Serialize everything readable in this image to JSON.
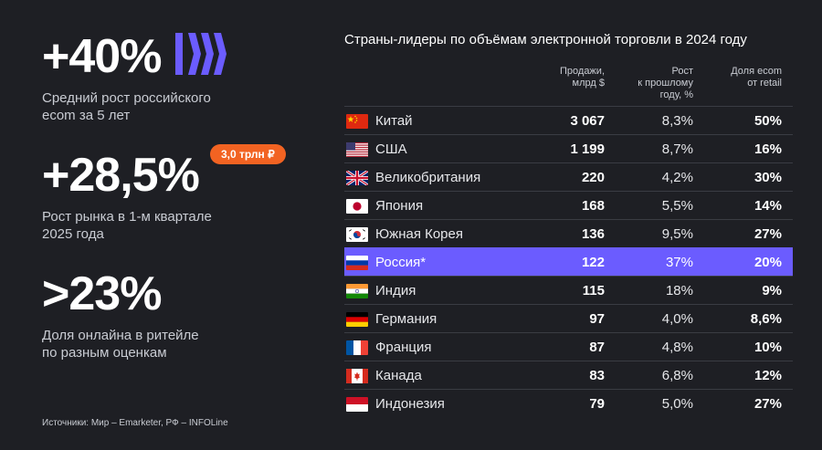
{
  "stats": [
    {
      "value": "+40%",
      "desc_line1": "Средний рост российского",
      "desc_line2": "ecom за 5 лет"
    },
    {
      "value": "+28,5%",
      "desc_line1": "Рост рынка в 1-м квартале",
      "desc_line2": "2025 года",
      "badge": "3,0 трлн ₽"
    },
    {
      "value": ">23%",
      "desc_line1": "Доля онлайна в ритейле",
      "desc_line2": "по разным оценкам"
    }
  ],
  "logo_icon": "brand-stripes-logo",
  "sources": "Источники: Мир – Emarketer, РФ – INFOLine",
  "table": {
    "title": "Страны-лидеры по объёмам электронной торговли в 2024 году",
    "headers": [
      {
        "line1": "Продажи,",
        "line2": "млрд $",
        "line3": ""
      },
      {
        "line1": "Рост",
        "line2": "к прошлому",
        "line3": "году, %"
      },
      {
        "line1": "Доля ecom",
        "line2": "от retail",
        "line3": ""
      }
    ],
    "highlight_color": "#6b5cff",
    "rows": [
      {
        "country": "Китай",
        "sales": "3 067",
        "growth": "8,3%",
        "share": "50%",
        "flag": "china-flag"
      },
      {
        "country": "США",
        "sales": "1 199",
        "growth": "8,7%",
        "share": "16%",
        "flag": "usa-flag"
      },
      {
        "country": "Великобритания",
        "sales": "220",
        "growth": "4,2%",
        "share": "30%",
        "flag": "uk-flag"
      },
      {
        "country": "Япония",
        "sales": "168",
        "growth": "5,5%",
        "share": "14%",
        "flag": "japan-flag"
      },
      {
        "country": "Южная Корея",
        "sales": "136",
        "growth": "9,5%",
        "share": "27%",
        "flag": "south-korea-flag"
      },
      {
        "country": "Россия*",
        "sales": "122",
        "growth": "37%",
        "share": "20%",
        "flag": "russia-flag",
        "highlight": true
      },
      {
        "country": "Индия",
        "sales": "115",
        "growth": "18%",
        "share": "9%",
        "flag": "india-flag"
      },
      {
        "country": "Германия",
        "sales": "97",
        "growth": "4,0%",
        "share": "8,6%",
        "flag": "germany-flag"
      },
      {
        "country": "Франция",
        "sales": "87",
        "growth": "4,8%",
        "share": "10%",
        "flag": "france-flag"
      },
      {
        "country": "Канада",
        "sales": "83",
        "growth": "6,8%",
        "share": "12%",
        "flag": "canada-flag"
      },
      {
        "country": "Индонезия",
        "sales": "79",
        "growth": "5,0%",
        "share": "27%",
        "flag": "indonesia-flag"
      }
    ]
  }
}
